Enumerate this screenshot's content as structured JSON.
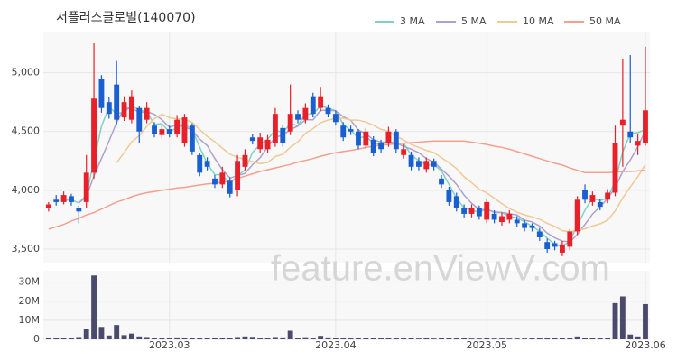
{
  "chart_data": {
    "type": "candlestick",
    "title": "서플러스글로벌(140070)",
    "watermark": "feature.enViewV.com",
    "up_color": "#e8202a",
    "down_color": "#1a5fd0",
    "grid": true,
    "xlim": [
      -0.7,
      79.6
    ],
    "xticks": [
      {
        "value": 16,
        "label": "2023.03"
      },
      {
        "value": 38,
        "label": "2023.04"
      },
      {
        "value": 58,
        "label": "2023.05"
      },
      {
        "value": 79,
        "label": "2023.06"
      }
    ],
    "ylim": [
      3385,
      5350
    ],
    "yticks": [
      {
        "value": 3500,
        "label": "3,500"
      },
      {
        "value": 4000,
        "label": "4,000"
      },
      {
        "value": 4500,
        "label": "4,500"
      },
      {
        "value": 5000,
        "label": "5,000"
      }
    ],
    "open": [
      3850,
      3920,
      3900,
      3950,
      3850,
      3900,
      4150,
      4950,
      4750,
      4900,
      4620,
      4600,
      4700,
      4600,
      4550,
      4470,
      4520,
      4480,
      4400,
      4550,
      4300,
      4250,
      4100,
      4050,
      4080,
      4000,
      4200,
      4450,
      4350,
      4350,
      4400,
      4530,
      4500,
      4650,
      4600,
      4800,
      4700,
      4700,
      4650,
      4550,
      4520,
      4500,
      4380,
      4430,
      4400,
      4400,
      4500,
      4300,
      4300,
      4250,
      4180,
      4250,
      4100,
      4000,
      3950,
      3850,
      3800,
      3850,
      3750,
      3800,
      3730,
      3750,
      3750,
      3720,
      3700,
      3650,
      3560,
      3550,
      3470,
      3520,
      3650,
      4000,
      3900,
      3900,
      3920,
      3980,
      4550,
      4500,
      4380,
      4400
    ],
    "high": [
      3900,
      3960,
      3990,
      3970,
      3870,
      4300,
      5250,
      4980,
      4790,
      5100,
      4800,
      4850,
      4720,
      4750,
      4580,
      4560,
      4550,
      4640,
      4650,
      4570,
      4320,
      4280,
      4130,
      4200,
      4110,
      4300,
      4350,
      4480,
      4490,
      4470,
      4700,
      4560,
      4900,
      4680,
      4740,
      4830,
      4880,
      4730,
      4680,
      4580,
      4550,
      4520,
      4530,
      4460,
      4430,
      4540,
      4520,
      4390,
      4330,
      4280,
      4280,
      4270,
      4130,
      4030,
      3980,
      3880,
      3880,
      3870,
      3930,
      3830,
      3810,
      3830,
      3780,
      3750,
      3720,
      3680,
      3590,
      3570,
      3570,
      3670,
      3950,
      4050,
      3990,
      3930,
      4010,
      4550,
      5120,
      5150,
      4480,
      5220
    ],
    "low": [
      3820,
      3870,
      3880,
      3870,
      3720,
      3850,
      4100,
      4660,
      4610,
      4560,
      4590,
      4570,
      4400,
      4570,
      4450,
      4440,
      4450,
      4450,
      4370,
      4300,
      4120,
      4170,
      4020,
      4020,
      3940,
      3950,
      4170,
      4390,
      4320,
      4320,
      4370,
      4370,
      4470,
      4570,
      4570,
      4620,
      4670,
      4620,
      4550,
      4420,
      4470,
      4350,
      4350,
      4290,
      4320,
      4370,
      4320,
      4270,
      4170,
      4170,
      4150,
      4170,
      4020,
      3870,
      3820,
      3770,
      3770,
      3750,
      3720,
      3720,
      3700,
      3720,
      3690,
      3650,
      3650,
      3570,
      3470,
      3490,
      3440,
      3490,
      3620,
      3890,
      3870,
      3830,
      3890,
      3950,
      4200,
      4400,
      4300,
      4380
    ],
    "close": [
      3880,
      3900,
      3960,
      3900,
      3820,
      4150,
      4780,
      4700,
      4650,
      4600,
      4750,
      4800,
      4500,
      4700,
      4480,
      4520,
      4480,
      4600,
      4620,
      4330,
      4150,
      4200,
      4050,
      4150,
      3970,
      4250,
      4300,
      4420,
      4450,
      4430,
      4650,
      4400,
      4650,
      4600,
      4700,
      4650,
      4800,
      4650,
      4580,
      4450,
      4500,
      4380,
      4500,
      4320,
      4350,
      4500,
      4350,
      4350,
      4200,
      4200,
      4250,
      4200,
      4050,
      3900,
      3850,
      3800,
      3850,
      3780,
      3900,
      3750,
      3780,
      3800,
      3720,
      3680,
      3680,
      3600,
      3500,
      3520,
      3540,
      3650,
      3920,
      3920,
      3960,
      3860,
      3980,
      4400,
      4600,
      4450,
      4420,
      4680
    ],
    "series": [
      {
        "name": "3 MA",
        "color": "#7fd3c3",
        "values": [
          null,
          null,
          3913,
          3920,
          3893,
          3957,
          4250,
          4543,
          4710,
          4650,
          4667,
          4717,
          4683,
          4667,
          4560,
          4567,
          4493,
          4533,
          4567,
          4517,
          4367,
          4227,
          4133,
          4133,
          4057,
          4123,
          4173,
          4323,
          4390,
          4433,
          4510,
          4493,
          4567,
          4550,
          4650,
          4650,
          4717,
          4700,
          4677,
          4560,
          4510,
          4443,
          4460,
          4400,
          4390,
          4390,
          4400,
          4400,
          4300,
          4250,
          4217,
          4217,
          4167,
          4050,
          3933,
          3850,
          3833,
          3810,
          3843,
          3810,
          3810,
          3777,
          3767,
          3733,
          3693,
          3653,
          3593,
          3540,
          3520,
          3570,
          3703,
          3830,
          3933,
          3913,
          3933,
          4080,
          4327,
          4483,
          4490,
          4517
        ]
      },
      {
        "name": "5 MA",
        "color": "#ae9fcf",
        "values": [
          null,
          null,
          null,
          null,
          3892,
          3946,
          4122,
          4270,
          4420,
          4576,
          4696,
          4700,
          4660,
          4670,
          4646,
          4600,
          4536,
          4556,
          4540,
          4510,
          4436,
          4380,
          4270,
          4176,
          4104,
          4124,
          4144,
          4218,
          4278,
          4370,
          4450,
          4470,
          4516,
          4546,
          4600,
          4600,
          4680,
          4680,
          4676,
          4626,
          4596,
          4512,
          4482,
          4430,
          4410,
          4410,
          4404,
          4374,
          4350,
          4320,
          4270,
          4240,
          4180,
          4120,
          4050,
          3960,
          3890,
          3836,
          3836,
          3816,
          3812,
          3802,
          3790,
          3746,
          3732,
          3696,
          3636,
          3596,
          3568,
          3562,
          3626,
          3710,
          3798,
          3862,
          3928,
          4024,
          4160,
          4258,
          4370,
          4510
        ]
      },
      {
        "name": "10 MA",
        "color": "#f0c994",
        "values": [
          null,
          null,
          null,
          null,
          null,
          null,
          null,
          null,
          null,
          4234,
          4321,
          4411,
          4465,
          4545,
          4611,
          4648,
          4618,
          4608,
          4605,
          4578,
          4518,
          4458,
          4413,
          4358,
          4307,
          4280,
          4262,
          4244,
          4227,
          4237,
          4287,
          4307,
          4367,
          4412,
          4485,
          4525,
          4575,
          4598,
          4611,
          4613,
          4598,
          4596,
          4581,
          4553,
          4518,
          4503,
          4458,
          4428,
          4390,
          4365,
          4340,
          4322,
          4277,
          4235,
          4185,
          4115,
          4065,
          4008,
          3978,
          3933,
          3886,
          3846,
          3813,
          3791,
          3774,
          3754,
          3719,
          3693,
          3657,
          3647,
          3661,
          3673,
          3697,
          3715,
          3745,
          3825,
          3935,
          4028,
          4116,
          4219
        ]
      },
      {
        "name": "50 MA",
        "color": "#f4a08e",
        "values": [
          3670,
          3690,
          3710,
          3740,
          3760,
          3790,
          3810,
          3840,
          3870,
          3900,
          3920,
          3945,
          3965,
          3980,
          3990,
          4000,
          4010,
          4020,
          4025,
          4035,
          4045,
          4055,
          4060,
          4070,
          4080,
          4100,
          4120,
          4140,
          4160,
          4175,
          4190,
          4205,
          4220,
          4240,
          4255,
          4270,
          4290,
          4305,
          4320,
          4330,
          4340,
          4350,
          4365,
          4375,
          4385,
          4390,
          4395,
          4400,
          4405,
          4410,
          4415,
          4420,
          4420,
          4420,
          4420,
          4420,
          4410,
          4400,
          4390,
          4375,
          4365,
          4350,
          4330,
          4310,
          4290,
          4270,
          4250,
          4230,
          4215,
          4190,
          4170,
          4150,
          4150,
          4150,
          4150,
          4155,
          4160,
          4160,
          4165,
          4170
        ]
      }
    ],
    "volume": {
      "type": "bar",
      "color": "#4a4a6c",
      "ylim": [
        0,
        36000000
      ],
      "yticks": [
        0,
        {
          "value": 10000000,
          "label": "10M"
        },
        {
          "value": 20000000,
          "label": "20M"
        },
        {
          "value": 30000000,
          "label": "30M"
        }
      ],
      "values": [
        800000,
        600000,
        500000,
        700000,
        1200000,
        5500000,
        33500000,
        6500000,
        2000000,
        7500000,
        2200000,
        3000000,
        1500000,
        1200000,
        900000,
        700000,
        800000,
        1000000,
        900000,
        700000,
        600000,
        500000,
        500000,
        600000,
        700000,
        1200000,
        1500000,
        1300000,
        800000,
        700000,
        1200000,
        1000000,
        4500000,
        900000,
        1100000,
        900000,
        1800000,
        1000000,
        800000,
        700000,
        600000,
        600000,
        700000,
        500000,
        500000,
        600000,
        700000,
        500000,
        500000,
        400000,
        500000,
        400000,
        500000,
        600000,
        500000,
        500000,
        400000,
        400000,
        500000,
        400000,
        400000,
        400000,
        400000,
        400000,
        500000,
        600000,
        800000,
        600000,
        500000,
        700000,
        1500000,
        800000,
        600000,
        500000,
        800000,
        19000000,
        22500000,
        2500000,
        1500000,
        18500000
      ]
    }
  }
}
